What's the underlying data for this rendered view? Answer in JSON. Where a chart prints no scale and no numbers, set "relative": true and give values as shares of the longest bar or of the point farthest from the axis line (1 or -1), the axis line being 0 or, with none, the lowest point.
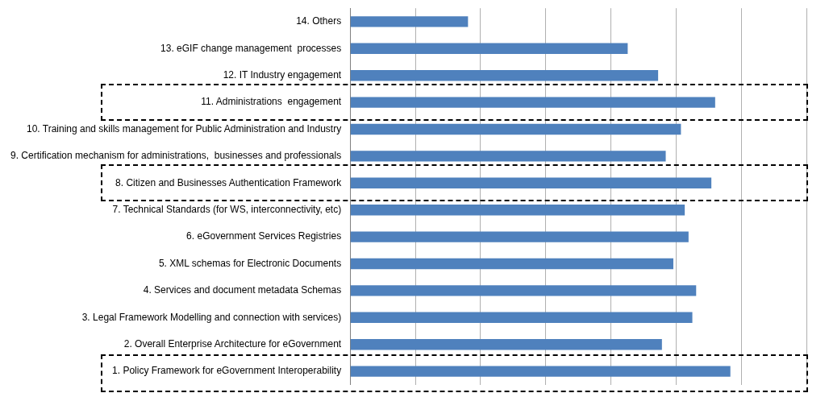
{
  "chart_data": {
    "type": "bar",
    "orientation": "horizontal",
    "relative": true,
    "grid": "x",
    "legend": false,
    "color": "#4f81bd",
    "categories": [
      "14. Others",
      "13. eGIF change management  processes",
      "12. IT Industry engagement",
      "11. Administrations  engagement",
      "10. Training and skills management for Public Administration and Industry",
      "9. Certification mechanism for administrations,  businesses and professionals",
      "8. Citizen and Businesses Authentication Framework",
      "7. Technical Standards (for WS, interconnectivity, etc)",
      "6. eGovernment Services Registries",
      "5. XML schemas for Electronic Documents",
      "4. Services and document metadata Schemas",
      "3. Legal Framework Modelling and connection with services)",
      "2. Overall Enterprise Architecture for eGovernment",
      "1. Policy Framework for eGovernment Interoperability"
    ],
    "values": [
      0.31,
      0.73,
      0.81,
      0.96,
      0.87,
      0.83,
      0.95,
      0.88,
      0.89,
      0.85,
      0.91,
      0.9,
      0.82,
      1
    ]
  }
}
